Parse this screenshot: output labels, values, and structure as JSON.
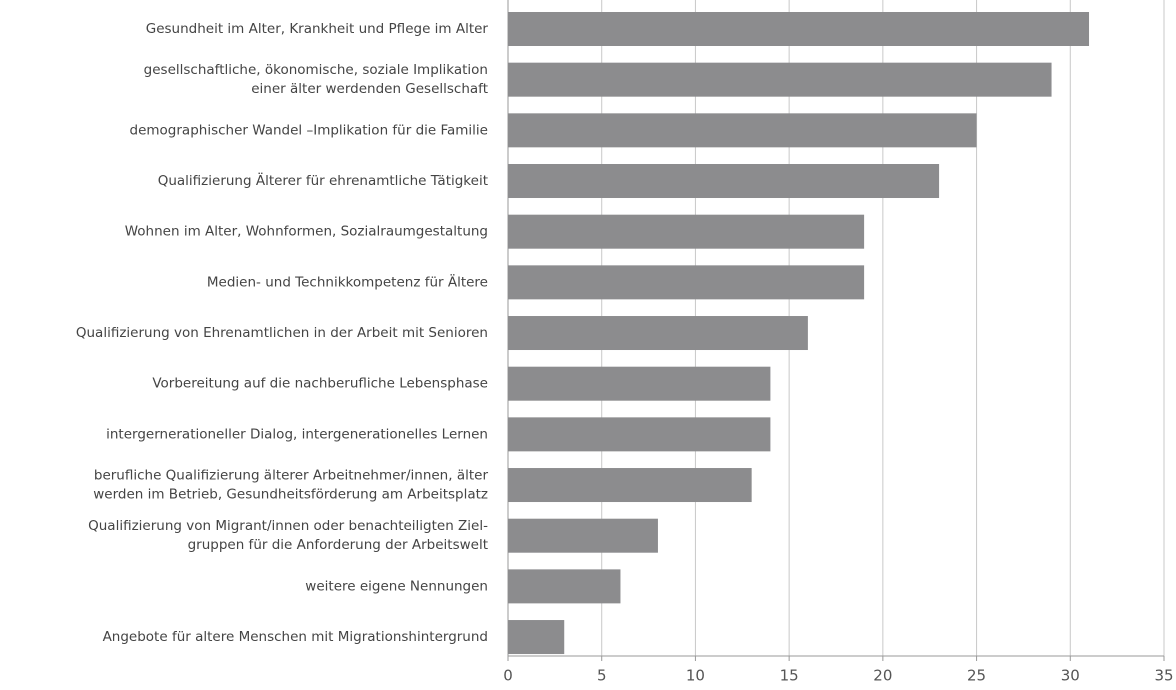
{
  "chart_data": {
    "type": "bar",
    "orientation": "horizontal",
    "categories": [
      [
        "Gesundheit im Alter, Krankheit und Pflege im Alter"
      ],
      [
        "gesellschaftliche, ökonomische, soziale Implikation",
        "einer älter werdenden Gesellschaft"
      ],
      [
        "demographischer Wandel –Implikation für die Familie"
      ],
      [
        "Qualifizierung Älterer für ehrenamtliche Tätigkeit"
      ],
      [
        "Wohnen im Alter, Wohnformen, Sozialraumgestaltung"
      ],
      [
        "Medien- und Technikkompetenz für Ältere"
      ],
      [
        "Qualifizierung von Ehrenamtlichen in der Arbeit mit Senioren"
      ],
      [
        "Vorbereitung auf die nachberufliche Lebensphase"
      ],
      [
        "intergernerationeller Dialog, intergenerationelles Lernen"
      ],
      [
        "berufliche Qualifizierung älterer Arbeitnehmer/innen, älter",
        "werden im Betrieb, Gesundheitsförderung am Arbeitsplatz"
      ],
      [
        "Qualifizierung von Migrant/innen oder benachteiligten Ziel-",
        "gruppen für die Anforderung der Arbeitswelt"
      ],
      [
        "weitere eigene Nennungen"
      ],
      [
        "Angebote für altere Menschen mit Migrationshintergrund"
      ]
    ],
    "values": [
      31,
      29,
      25,
      23,
      19,
      19,
      16,
      14,
      14,
      13,
      8,
      6,
      3
    ],
    "color": "#8c8c8e",
    "xlim": [
      0,
      35
    ],
    "xticks": [
      0,
      5,
      10,
      15,
      20,
      25,
      30,
      35
    ],
    "grid": true
  }
}
